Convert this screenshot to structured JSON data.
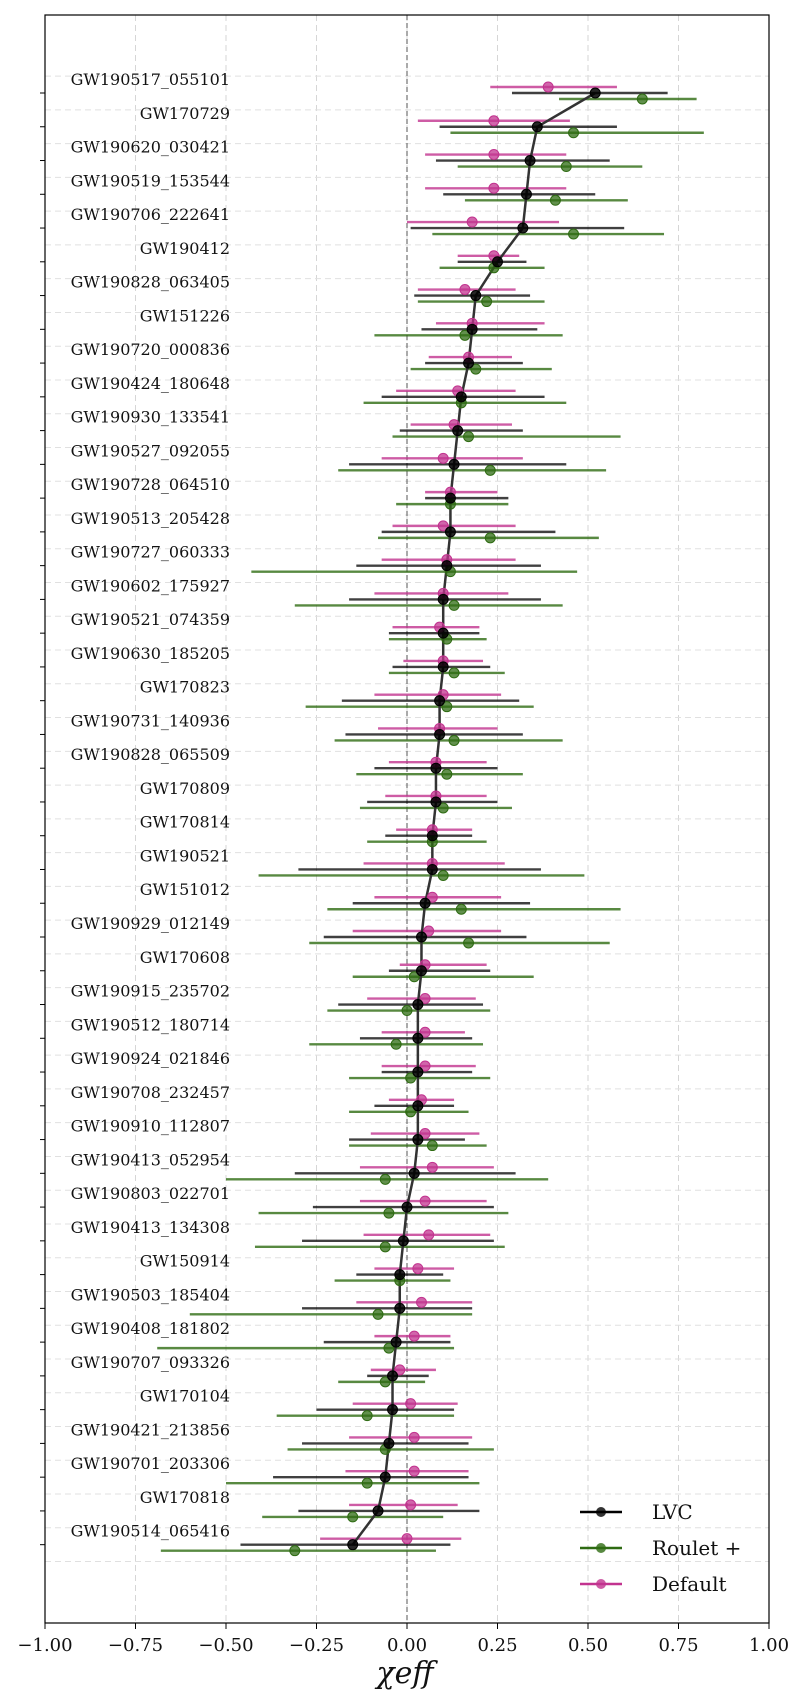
{
  "chart_data": {
    "type": "scatter",
    "title": "",
    "xlabel": "χeff",
    "ylabel": "",
    "xlim": [
      -1.0,
      1.0
    ],
    "xticks": [
      "−1.00",
      "−0.75",
      "−0.50",
      "−0.25",
      "0.00",
      "0.25",
      "0.50",
      "0.75",
      "1.00"
    ],
    "grid": true,
    "reference_line_x": 0.0,
    "legend_position": "bottom-right",
    "events": [
      "GW190517_055101",
      "GW170729",
      "GW190620_030421",
      "GW190519_153544",
      "GW190706_222641",
      "GW190412",
      "GW190828_063405",
      "GW151226",
      "GW190720_000836",
      "GW190424_180648",
      "GW190930_133541",
      "GW190527_092055",
      "GW190728_064510",
      "GW190513_205428",
      "GW190727_060333",
      "GW190602_175927",
      "GW190521_074359",
      "GW190630_185205",
      "GW170823",
      "GW190731_140936",
      "GW190828_065509",
      "GW170809",
      "GW170814",
      "GW190521",
      "GW151012",
      "GW190929_012149",
      "GW170608",
      "GW190915_235702",
      "GW190512_180714",
      "GW190924_021846",
      "GW190708_232457",
      "GW190910_112807",
      "GW190413_052954",
      "GW190803_022701",
      "GW190413_134308",
      "GW150914",
      "GW190503_185404",
      "GW190408_181802",
      "GW190707_093326",
      "GW170104",
      "GW190421_213856",
      "GW190701_203306",
      "GW170818",
      "GW190514_065416"
    ],
    "series": [
      {
        "name": "LVC",
        "color": "#000000",
        "connected": true,
        "values": [
          0.52,
          0.36,
          0.34,
          0.33,
          0.32,
          0.25,
          0.19,
          0.18,
          0.17,
          0.15,
          0.14,
          0.13,
          0.12,
          0.12,
          0.11,
          0.1,
          0.1,
          0.1,
          0.09,
          0.09,
          0.08,
          0.08,
          0.07,
          0.07,
          0.05,
          0.04,
          0.04,
          0.03,
          0.03,
          0.03,
          0.03,
          0.03,
          0.02,
          0.0,
          -0.01,
          -0.02,
          -0.02,
          -0.03,
          -0.04,
          -0.04,
          -0.05,
          -0.06,
          -0.08,
          -0.15
        ],
        "lower": [
          0.29,
          0.09,
          0.08,
          0.1,
          0.01,
          0.14,
          0.02,
          0.04,
          0.05,
          -0.07,
          -0.02,
          -0.16,
          0.05,
          -0.07,
          -0.14,
          -0.16,
          -0.05,
          -0.04,
          -0.18,
          -0.17,
          -0.09,
          -0.11,
          -0.06,
          -0.3,
          -0.15,
          -0.23,
          -0.05,
          -0.19,
          -0.13,
          -0.07,
          -0.09,
          -0.16,
          -0.31,
          -0.26,
          -0.29,
          -0.14,
          -0.29,
          -0.23,
          -0.11,
          -0.25,
          -0.29,
          -0.37,
          -0.3,
          -0.46
        ],
        "upper": [
          0.72,
          0.58,
          0.56,
          0.52,
          0.6,
          0.33,
          0.34,
          0.36,
          0.32,
          0.38,
          0.32,
          0.44,
          0.28,
          0.41,
          0.37,
          0.37,
          0.2,
          0.23,
          0.31,
          0.32,
          0.25,
          0.25,
          0.18,
          0.37,
          0.34,
          0.33,
          0.23,
          0.21,
          0.18,
          0.18,
          0.13,
          0.16,
          0.3,
          0.24,
          0.24,
          0.1,
          0.18,
          0.12,
          0.06,
          0.13,
          0.17,
          0.17,
          0.2,
          0.12
        ]
      },
      {
        "name": "Roulet +",
        "color": "#2e6b12",
        "connected": false,
        "values": [
          0.65,
          0.46,
          0.44,
          0.41,
          0.46,
          0.24,
          0.22,
          0.16,
          0.19,
          0.15,
          0.17,
          0.23,
          0.12,
          0.23,
          0.12,
          0.13,
          0.11,
          0.13,
          0.11,
          0.13,
          0.11,
          0.1,
          0.07,
          0.1,
          0.15,
          0.17,
          0.02,
          0.0,
          -0.03,
          0.01,
          0.01,
          0.07,
          -0.06,
          -0.05,
          -0.06,
          -0.02,
          -0.08,
          -0.05,
          -0.06,
          -0.11,
          -0.06,
          -0.11,
          -0.15,
          -0.31
        ],
        "lower": [
          0.42,
          0.12,
          0.14,
          0.16,
          0.07,
          0.09,
          0.03,
          -0.09,
          0.01,
          -0.12,
          -0.04,
          -0.19,
          -0.03,
          -0.08,
          -0.43,
          -0.31,
          -0.05,
          -0.05,
          -0.28,
          -0.2,
          -0.14,
          -0.13,
          -0.11,
          -0.41,
          -0.22,
          -0.27,
          -0.15,
          -0.22,
          -0.27,
          -0.16,
          -0.16,
          -0.16,
          -0.5,
          -0.41,
          -0.42,
          -0.2,
          -0.6,
          -0.69,
          -0.19,
          -0.36,
          -0.33,
          -0.5,
          -0.4,
          -0.68
        ],
        "upper": [
          0.8,
          0.82,
          0.65,
          0.61,
          0.71,
          0.38,
          0.38,
          0.43,
          0.4,
          0.44,
          0.59,
          0.55,
          0.28,
          0.53,
          0.47,
          0.43,
          0.22,
          0.27,
          0.35,
          0.43,
          0.32,
          0.29,
          0.22,
          0.49,
          0.59,
          0.56,
          0.35,
          0.23,
          0.21,
          0.23,
          0.17,
          0.22,
          0.39,
          0.28,
          0.27,
          0.12,
          0.18,
          0.13,
          0.05,
          0.13,
          0.24,
          0.2,
          0.1,
          0.08
        ]
      },
      {
        "name": "Default",
        "color": "#c2338f",
        "connected": false,
        "values": [
          0.39,
          0.24,
          0.24,
          0.24,
          0.18,
          0.24,
          0.16,
          0.18,
          0.17,
          0.14,
          0.13,
          0.1,
          0.12,
          0.1,
          0.11,
          0.1,
          0.09,
          0.1,
          0.1,
          0.09,
          0.08,
          0.08,
          0.07,
          0.07,
          0.07,
          0.06,
          0.05,
          0.05,
          0.05,
          0.05,
          0.04,
          0.05,
          0.07,
          0.05,
          0.06,
          0.03,
          0.04,
          0.02,
          -0.02,
          0.01,
          0.02,
          0.02,
          0.01,
          0.0
        ],
        "lower": [
          0.23,
          0.03,
          0.05,
          0.05,
          0.0,
          0.14,
          0.03,
          0.08,
          0.06,
          -0.03,
          0.01,
          -0.07,
          0.05,
          -0.04,
          -0.07,
          -0.09,
          -0.04,
          -0.01,
          -0.09,
          -0.08,
          -0.05,
          -0.06,
          -0.03,
          -0.12,
          -0.09,
          -0.15,
          -0.02,
          -0.11,
          -0.07,
          -0.07,
          -0.05,
          -0.1,
          -0.13,
          -0.13,
          -0.12,
          -0.09,
          -0.14,
          -0.09,
          -0.1,
          -0.15,
          -0.16,
          -0.17,
          -0.16,
          -0.24
        ],
        "upper": [
          0.58,
          0.45,
          0.44,
          0.44,
          0.42,
          0.31,
          0.3,
          0.38,
          0.29,
          0.3,
          0.29,
          0.32,
          0.25,
          0.3,
          0.3,
          0.28,
          0.2,
          0.21,
          0.26,
          0.25,
          0.22,
          0.22,
          0.18,
          0.27,
          0.26,
          0.26,
          0.22,
          0.19,
          0.16,
          0.19,
          0.13,
          0.2,
          0.24,
          0.22,
          0.23,
          0.13,
          0.18,
          0.12,
          0.08,
          0.14,
          0.18,
          0.17,
          0.14,
          0.15
        ]
      }
    ]
  }
}
